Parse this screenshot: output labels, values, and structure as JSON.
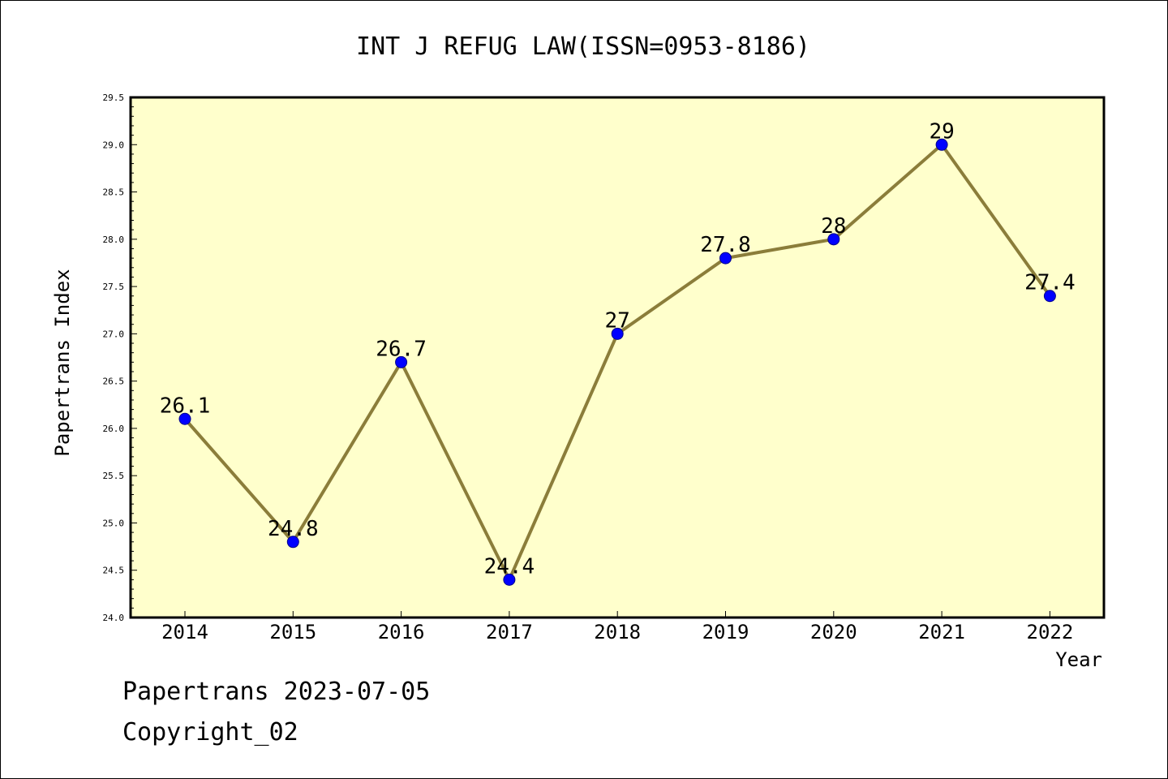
{
  "colors": {
    "plot_background": "#ffffcc",
    "line": "#8b7d3a",
    "marker": "#0000ff",
    "axis": "#000000"
  },
  "footer": {
    "line1": "Papertrans 2023-07-05",
    "line2": "Copyright_02"
  },
  "chart_data": {
    "type": "line",
    "title": "INT J REFUG LAW(ISSN=0953-8186)",
    "xlabel": "Year",
    "ylabel": "Papertrans Index",
    "ylim": [
      24.0,
      29.5
    ],
    "yticks": [
      "24.0",
      "24.5",
      "25.0",
      "25.5",
      "26.0",
      "26.5",
      "27.0",
      "27.5",
      "28.0",
      "28.5",
      "29.0",
      "29.5"
    ],
    "categories": [
      "2014",
      "2015",
      "2016",
      "2017",
      "2018",
      "2019",
      "2020",
      "2021",
      "2022"
    ],
    "series": [
      {
        "values": [
          26.1,
          24.8,
          26.7,
          24.4,
          27,
          27.8,
          28,
          29,
          27.4
        ],
        "labels": [
          "26.1",
          "24.8",
          "26.7",
          "24.4",
          "27",
          "27.8",
          "28",
          "29",
          "27.4"
        ]
      }
    ],
    "grid": false,
    "legend": "none"
  }
}
